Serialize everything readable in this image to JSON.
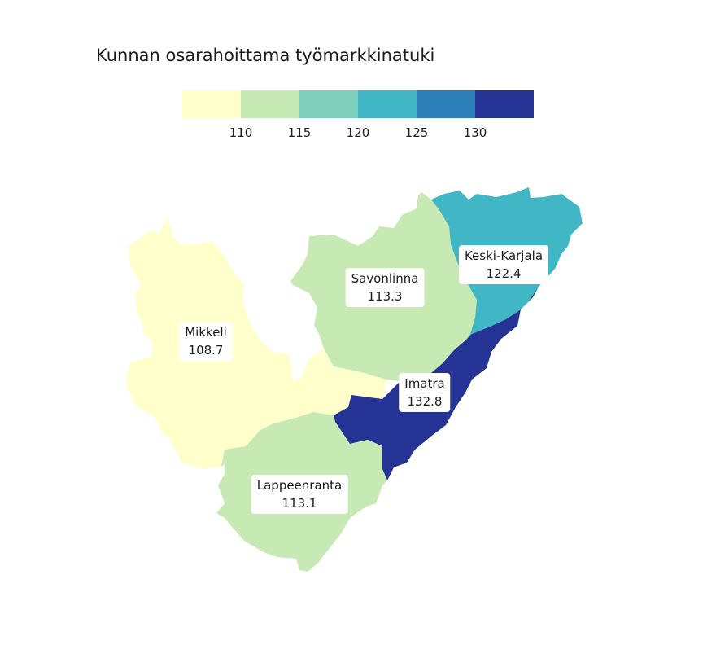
{
  "title": "Kunnan osarahoittama työmarkkinatuki",
  "legend": {
    "colors": [
      "#ffffcc",
      "#c7e9b4",
      "#7fcdbb",
      "#41b6c4",
      "#2c7fb8",
      "#253494"
    ],
    "ticks": [
      "110",
      "115",
      "120",
      "125",
      "130"
    ]
  },
  "regions": [
    {
      "name": "Mikkeli",
      "value": "108.7",
      "color": "#ffffcc"
    },
    {
      "name": "Savonlinna",
      "value": "113.3",
      "color": "#c7e9b4"
    },
    {
      "name": "Keski-Karjala",
      "value": "122.4",
      "color": "#41b6c4"
    },
    {
      "name": "Imatra",
      "value": "132.8",
      "color": "#253494"
    },
    {
      "name": "Lappeenranta",
      "value": "113.1",
      "color": "#c7e9b4"
    }
  ]
}
